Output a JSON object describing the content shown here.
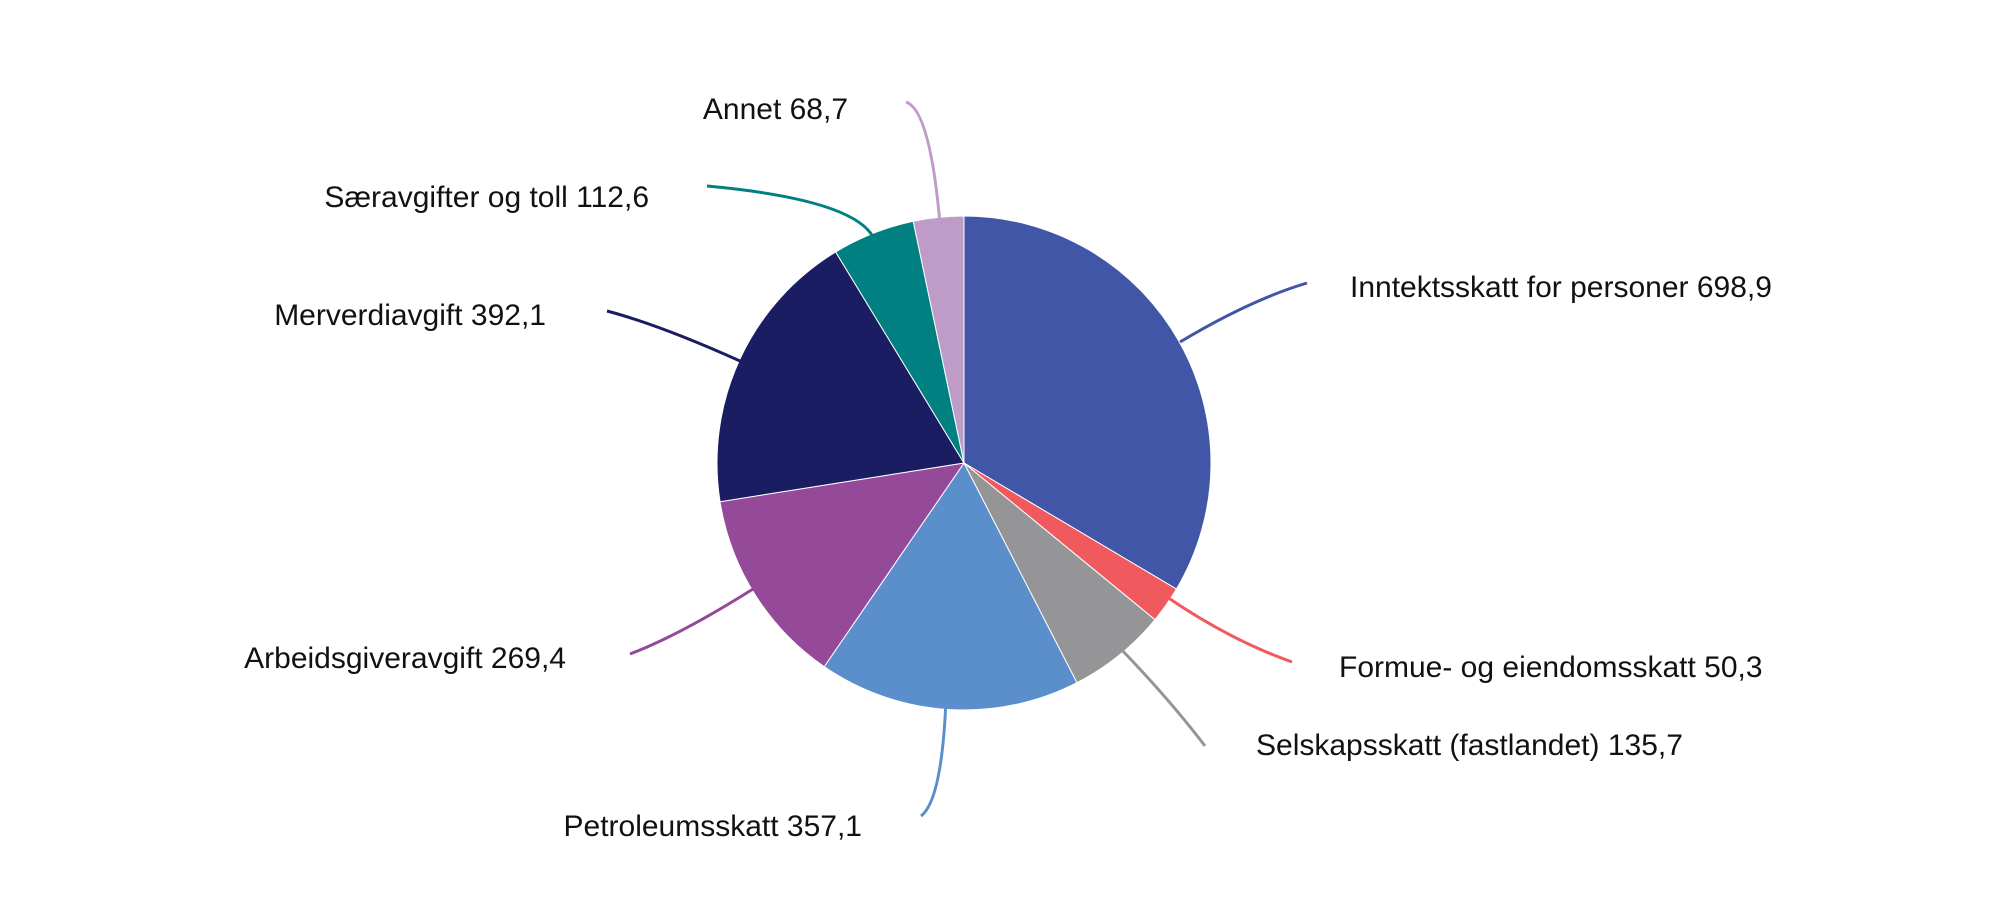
{
  "chart_data": {
    "type": "pie",
    "title": "",
    "start_angle": "top",
    "direction": "clockwise",
    "slices": [
      {
        "label": "Inntektsskatt for personer",
        "value": 698.9,
        "display": "Inntektsskatt for personer 698,9",
        "color": "#4156a7"
      },
      {
        "label": "Formue- og eiendomsskatt",
        "value": 50.3,
        "display": "Formue- og eiendomsskatt 50,3",
        "color": "#f05a5f"
      },
      {
        "label": "Selskapsskatt (fastlandet)",
        "value": 135.7,
        "display": "Selskapsskatt (fastlandet) 135,7",
        "color": "#959496"
      },
      {
        "label": "Petroleumsskatt",
        "value": 357.1,
        "display": "Petroleumsskatt 357,1",
        "color": "#5b8fcc"
      },
      {
        "label": "Arbeidsgiveravgift",
        "value": 269.4,
        "display": "Arbeidsgiveravgift 269,4",
        "color": "#954a99"
      },
      {
        "label": "Merverdiavgift",
        "value": 392.1,
        "display": "Merverdiavgift 392,1",
        "color": "#1a1d61"
      },
      {
        "label": "Særavgifter og toll",
        "value": 112.6,
        "display": "Særavgifter og toll 112,6",
        "color": "#008080"
      },
      {
        "label": "Annet",
        "value": 68.7,
        "display": "Annet 68,7",
        "color": "#bf9bc8"
      }
    ]
  }
}
